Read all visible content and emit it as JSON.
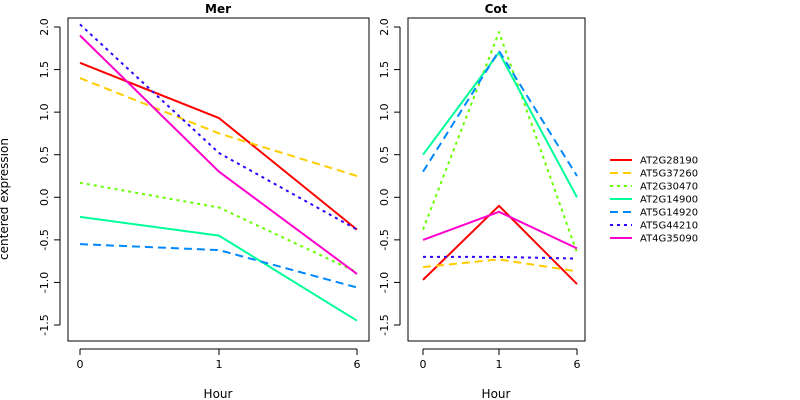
{
  "chart_data": {
    "type": "line",
    "ylabel": "centered expression",
    "xlabel": "Hour",
    "categories": [
      "0",
      "1",
      "6"
    ],
    "ylim": [
      -1.6,
      2.1
    ],
    "yticks": [
      "-1.5",
      "-1.0",
      "-0.5",
      "0.0",
      "0.5",
      "1.0",
      "1.5",
      "2.0"
    ],
    "legend_position": "right",
    "grid": false,
    "series": [
      {
        "name": "AT2G28190",
        "color": "#ff0000",
        "dash": "solid"
      },
      {
        "name": "AT5G37260",
        "color": "#ffcc00",
        "dash": "dashed"
      },
      {
        "name": "AT2G30470",
        "color": "#66ff00",
        "dash": "dotted"
      },
      {
        "name": "AT2G14900",
        "color": "#00ff99",
        "dash": "solid"
      },
      {
        "name": "AT5G14920",
        "color": "#0088ff",
        "dash": "dashed"
      },
      {
        "name": "AT5G44210",
        "color": "#3300ff",
        "dash": "dotted"
      },
      {
        "name": "AT4G35090",
        "color": "#ff00cc",
        "dash": "solid"
      }
    ],
    "panels": [
      {
        "title": "Mer",
        "values": [
          [
            1.58,
            0.93,
            -0.38
          ],
          [
            1.4,
            0.75,
            0.25
          ],
          [
            0.17,
            -0.12,
            -0.88
          ],
          [
            -0.23,
            -0.45,
            -1.45
          ],
          [
            -0.55,
            -0.62,
            -1.06
          ],
          [
            2.03,
            0.52,
            -0.38
          ],
          [
            1.9,
            0.3,
            -0.9
          ]
        ]
      },
      {
        "title": "Cot",
        "values": [
          [
            -0.97,
            -0.1,
            -1.02
          ],
          [
            -0.82,
            -0.73,
            -0.87
          ],
          [
            -0.38,
            1.94,
            -0.65
          ],
          [
            0.5,
            1.7,
            0.0
          ],
          [
            0.3,
            1.72,
            0.25
          ],
          [
            -0.7,
            -0.7,
            -0.72
          ],
          [
            -0.5,
            -0.17,
            -0.6
          ]
        ]
      }
    ]
  }
}
